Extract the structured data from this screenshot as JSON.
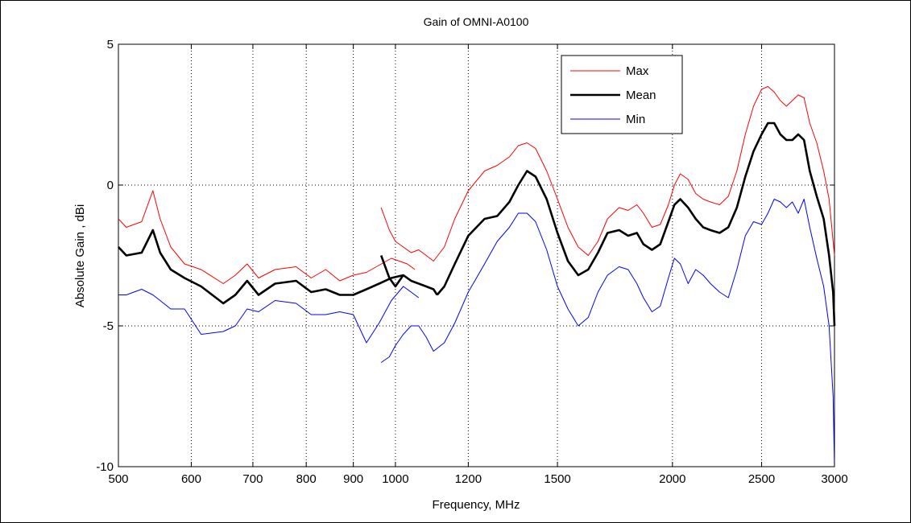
{
  "chart_data": {
    "type": "line",
    "title": "Gain of OMNI-A0100",
    "xlabel": "Frequency, MHz",
    "ylabel": "Absolute Gain , dBi",
    "x_scale": "log",
    "xlim": [
      500,
      3000
    ],
    "ylim": [
      -10,
      5
    ],
    "x_ticks": [
      500,
      600,
      700,
      800,
      900,
      1000,
      1200,
      1500,
      2000,
      2500,
      3000
    ],
    "x_tick_labels": [
      "500",
      "600",
      "700",
      "800",
      "900",
      "1000",
      "1200",
      "1500",
      "2000",
      "2500",
      "3000"
    ],
    "y_ticks": [
      -10,
      -5,
      0,
      5
    ],
    "y_tick_labels": [
      "-10",
      "-5",
      "0",
      "5"
    ],
    "grid": true,
    "legend_position": "top-right",
    "series": [
      {
        "name": "Max",
        "color": "#ff0000",
        "segments": [
          {
            "x": [
              500,
              510,
              530,
              545,
              555,
              570,
              590,
              615,
              650,
              670,
              690,
              710,
              740,
              780,
              810,
              840,
              870,
              900,
              930,
              990,
              1030,
              1050
            ],
            "y": [
              -1.2,
              -1.5,
              -1.3,
              -0.2,
              -1.2,
              -2.2,
              -2.8,
              -3.0,
              -3.5,
              -3.2,
              -2.8,
              -3.3,
              -3.0,
              -2.9,
              -3.3,
              -3.0,
              -3.4,
              -3.2,
              -3.1,
              -2.6,
              -2.8,
              -3.0
            ]
          },
          {
            "x": [
              965,
              985,
              1000,
              1020,
              1040,
              1060,
              1080,
              1100,
              1130,
              1160,
              1200,
              1250,
              1290,
              1330,
              1360,
              1390,
              1420,
              1460,
              1500,
              1540,
              1580,
              1620,
              1660,
              1700,
              1750,
              1790,
              1830,
              1860,
              1900,
              1940,
              1980,
              2010,
              2040,
              2080,
              2120,
              2160,
              2200,
              2250,
              2300,
              2350,
              2400,
              2450,
              2500,
              2540,
              2580,
              2620,
              2660,
              2700,
              2740,
              2780,
              2820,
              2870,
              2920,
              2960,
              2990,
              3000
            ],
            "y": [
              -0.8,
              -1.6,
              -2.0,
              -2.2,
              -2.4,
              -2.3,
              -2.5,
              -2.7,
              -2.2,
              -1.2,
              -0.2,
              0.5,
              0.7,
              1.0,
              1.4,
              1.5,
              1.3,
              0.5,
              -0.5,
              -1.5,
              -2.2,
              -2.5,
              -2.0,
              -1.2,
              -0.8,
              -0.9,
              -0.7,
              -1.0,
              -1.5,
              -1.4,
              -0.7,
              0.0,
              0.4,
              0.2,
              -0.3,
              -0.5,
              -0.6,
              -0.7,
              -0.4,
              0.5,
              1.8,
              2.8,
              3.4,
              3.5,
              3.3,
              3.0,
              2.8,
              3.0,
              3.2,
              3.1,
              2.2,
              1.5,
              0.5,
              -0.5,
              -2.0,
              -2.5
            ]
          }
        ]
      },
      {
        "name": "Mean",
        "color": "#000000",
        "segments": [
          {
            "x": [
              500,
              510,
              530,
              545,
              555,
              570,
              590,
              615,
              650,
              670,
              690,
              710,
              740,
              780,
              810,
              840,
              870,
              900,
              930,
              960,
              990,
              1020,
              1040,
              1060,
              1080,
              1100,
              1110
            ],
            "y": [
              -2.2,
              -2.5,
              -2.4,
              -1.6,
              -2.4,
              -3.0,
              -3.3,
              -3.6,
              -4.2,
              -3.9,
              -3.4,
              -3.9,
              -3.5,
              -3.4,
              -3.8,
              -3.7,
              -3.9,
              -3.9,
              -3.7,
              -3.5,
              -3.3,
              -3.2,
              -3.4,
              -3.5,
              -3.6,
              -3.7,
              -3.9
            ]
          },
          {
            "x": [
              965,
              985,
              1000,
              1020
            ],
            "y": [
              -2.5,
              -3.3,
              -3.6,
              -3.2
            ]
          },
          {
            "x": [
              1110,
              1130,
              1160,
              1200,
              1250,
              1290,
              1330,
              1360,
              1390,
              1420,
              1460,
              1500,
              1540,
              1580,
              1620,
              1660,
              1700,
              1750,
              1790,
              1830,
              1860,
              1900,
              1940,
              1980,
              2010,
              2040,
              2080,
              2120,
              2160,
              2200,
              2250,
              2300,
              2350,
              2400,
              2450,
              2500,
              2540,
              2580,
              2620,
              2660,
              2700,
              2740,
              2780,
              2820,
              2870,
              2920,
              2960,
              2990,
              3000
            ],
            "y": [
              -3.9,
              -3.6,
              -2.8,
              -1.8,
              -1.2,
              -1.1,
              -0.6,
              0.0,
              0.5,
              0.3,
              -0.5,
              -1.7,
              -2.7,
              -3.2,
              -3.0,
              -2.4,
              -1.7,
              -1.6,
              -1.8,
              -1.7,
              -2.1,
              -2.3,
              -2.1,
              -1.3,
              -0.7,
              -0.5,
              -0.8,
              -1.2,
              -1.5,
              -1.6,
              -1.7,
              -1.5,
              -0.8,
              0.3,
              1.2,
              1.8,
              2.2,
              2.2,
              1.8,
              1.6,
              1.6,
              1.8,
              1.6,
              0.5,
              -0.4,
              -1.2,
              -2.5,
              -3.8,
              -5.0
            ]
          }
        ]
      },
      {
        "name": "Min",
        "color": "#0000ff",
        "segments": [
          {
            "x": [
              500,
              510,
              530,
              545,
              555,
              570,
              590,
              615,
              650,
              670,
              690,
              710,
              740,
              780,
              810,
              840,
              870,
              900,
              930,
              960,
              990,
              1020,
              1040,
              1060
            ],
            "y": [
              -3.9,
              -3.9,
              -3.7,
              -3.9,
              -4.1,
              -4.4,
              -4.4,
              -5.3,
              -5.2,
              -5.0,
              -4.4,
              -4.5,
              -4.1,
              -4.2,
              -4.6,
              -4.6,
              -4.5,
              -4.6,
              -5.6,
              -4.9,
              -4.1,
              -3.6,
              -3.8,
              -4.0
            ]
          },
          {
            "x": [
              965,
              985,
              1000,
              1020,
              1040,
              1060,
              1080,
              1100,
              1130,
              1160,
              1200,
              1250,
              1290,
              1330,
              1360,
              1390,
              1420,
              1460,
              1500,
              1540,
              1580,
              1620,
              1660,
              1700,
              1750,
              1790,
              1830,
              1860,
              1900,
              1940,
              1980,
              2010,
              2040,
              2080,
              2120,
              2160,
              2200,
              2250,
              2300,
              2350,
              2400,
              2450,
              2500,
              2540,
              2580,
              2620,
              2660,
              2700,
              2740,
              2780,
              2820,
              2870,
              2920,
              2960,
              2990,
              3000
            ],
            "y": [
              -6.3,
              -6.1,
              -5.7,
              -5.3,
              -5.0,
              -5.0,
              -5.4,
              -5.9,
              -5.6,
              -4.9,
              -3.8,
              -2.8,
              -2.0,
              -1.5,
              -1.0,
              -1.0,
              -1.3,
              -2.3,
              -3.6,
              -4.4,
              -5.0,
              -4.7,
              -3.8,
              -3.2,
              -2.9,
              -3.0,
              -3.5,
              -4.0,
              -4.5,
              -4.3,
              -3.3,
              -2.6,
              -2.8,
              -3.5,
              -3.0,
              -3.2,
              -3.5,
              -3.8,
              -4.0,
              -3.0,
              -1.8,
              -1.3,
              -1.4,
              -1.0,
              -0.5,
              -0.6,
              -0.8,
              -0.6,
              -1.0,
              -0.5,
              -1.5,
              -2.6,
              -3.6,
              -5.0,
              -7.5,
              -10.0
            ]
          }
        ]
      }
    ]
  }
}
